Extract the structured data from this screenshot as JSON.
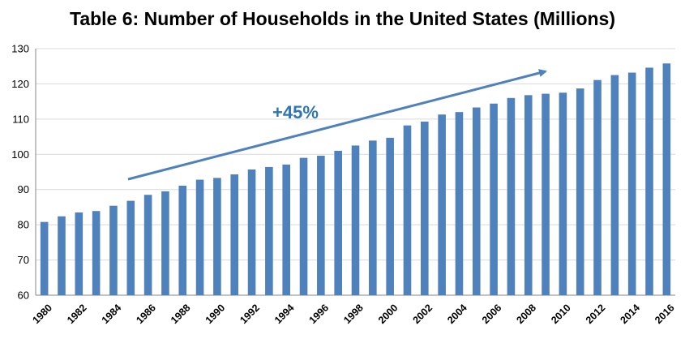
{
  "chart_data": {
    "type": "bar",
    "title": "Table 6: Number of Households in the United States (Millions)",
    "xlabel": "",
    "ylabel": "",
    "ylim": [
      60,
      130
    ],
    "yticks": [
      60,
      70,
      80,
      90,
      100,
      110,
      120,
      130
    ],
    "grid": true,
    "legend": "none",
    "bar_color": "#4f81bd",
    "categories": [
      "1980",
      "1981",
      "1982",
      "1983",
      "1984",
      "1985",
      "1986",
      "1987",
      "1988",
      "1989",
      "1990",
      "1991",
      "1992",
      "1993",
      "1994",
      "1995",
      "1996",
      "1997",
      "1998",
      "1999",
      "2000",
      "2001",
      "2002",
      "2003",
      "2004",
      "2005",
      "2006",
      "2007",
      "2008",
      "2009",
      "2010",
      "2011",
      "2012",
      "2013",
      "2014",
      "2015",
      "2016"
    ],
    "x_tick_labels": [
      "1980",
      "1982",
      "1984",
      "1986",
      "1988",
      "1990",
      "1992",
      "1994",
      "1996",
      "1998",
      "2000",
      "2002",
      "2004",
      "2006",
      "2008",
      "2010",
      "2012",
      "2014",
      "2016"
    ],
    "values": [
      80.8,
      82.4,
      83.5,
      83.9,
      85.4,
      86.8,
      88.5,
      89.5,
      91.1,
      92.8,
      93.3,
      94.3,
      95.7,
      96.4,
      97.1,
      99.0,
      99.6,
      101.0,
      102.5,
      103.9,
      104.7,
      108.2,
      109.3,
      111.3,
      112.0,
      113.3,
      114.4,
      116.0,
      116.8,
      117.2,
      117.5,
      118.7,
      121.1,
      122.5,
      123.2,
      124.6,
      125.8
    ],
    "annotation": {
      "text": "+45%",
      "arrow_color": "#4f81bd",
      "text_color": "#2e75b6"
    }
  }
}
